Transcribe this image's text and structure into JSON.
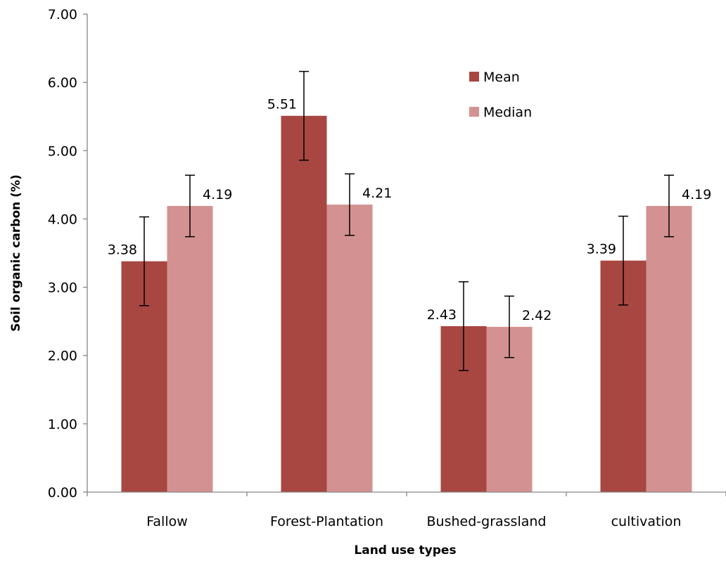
{
  "chart_data": {
    "type": "bar",
    "title": "",
    "xlabel": "Land use types",
    "ylabel": "Soil organic carbon (%)",
    "categories": [
      "Fallow",
      "Forest-Plantation",
      "Bushed-grassland",
      "cultivation"
    ],
    "series": [
      {
        "name": "Mean",
        "color": "#A84641",
        "values": [
          3.38,
          5.51,
          2.43,
          3.39
        ],
        "labels": [
          "3.38",
          "5.51",
          "2.43",
          "3.39"
        ],
        "error": [
          0.65,
          0.65,
          0.65,
          0.65
        ]
      },
      {
        "name": "Median",
        "color": "#D39291",
        "values": [
          4.19,
          4.21,
          2.42,
          4.19
        ],
        "labels": [
          "4.19",
          "4.21",
          "2.42",
          "4.19"
        ],
        "error": [
          0.45,
          0.45,
          0.45,
          0.45
        ]
      }
    ],
    "ylim": [
      0,
      7
    ],
    "yticks": [
      "0.00",
      "1.00",
      "2.00",
      "3.00",
      "4.00",
      "5.00",
      "6.00",
      "7.00"
    ],
    "grid": false,
    "legend_position": "top-right"
  }
}
